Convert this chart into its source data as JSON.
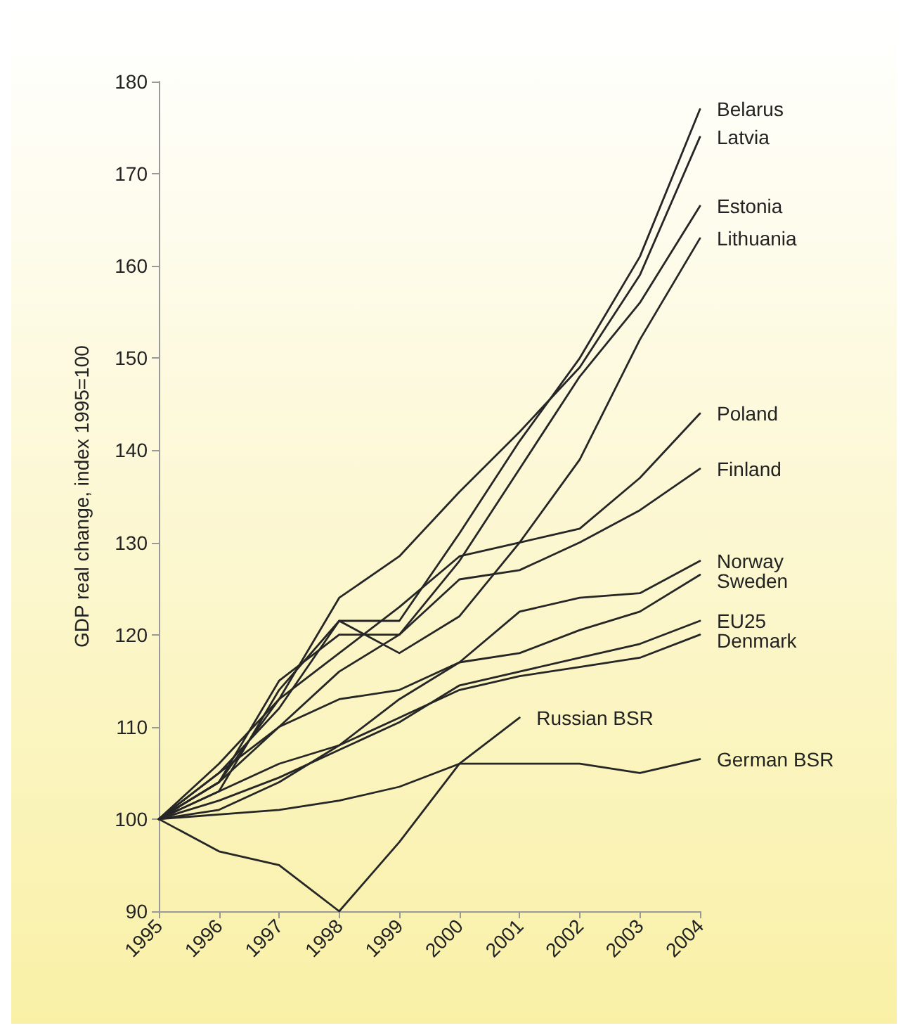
{
  "chart_data": {
    "type": "line",
    "ylabel": "GDP real change, index 1995=100",
    "categories": [
      "1995",
      "1996",
      "1997",
      "1998",
      "1999",
      "2000",
      "2001",
      "2002",
      "2003",
      "2004"
    ],
    "ylim": [
      90,
      180
    ],
    "yticks": [
      90,
      100,
      110,
      120,
      130,
      140,
      150,
      160,
      170,
      180
    ],
    "grid": false,
    "legend": false,
    "marker": "none",
    "line_style": "solid",
    "series": [
      {
        "name": "Belarus",
        "color": "#262626",
        "values": [
          100,
          103,
          114,
          121.5,
          121.5,
          131,
          141,
          150,
          161,
          177
        ]
      },
      {
        "name": "Latvia",
        "color": "#262626",
        "values": [
          100,
          104,
          113,
          124,
          128.5,
          135.5,
          142,
          149,
          159,
          174
        ]
      },
      {
        "name": "Estonia",
        "color": "#262626",
        "values": [
          100,
          104,
          115,
          120,
          120,
          128,
          138,
          148,
          156,
          166.5
        ]
      },
      {
        "name": "Lithuania",
        "color": "#262626",
        "values": [
          100,
          105,
          112,
          121.5,
          118,
          122,
          130,
          139,
          152,
          163
        ]
      },
      {
        "name": "Poland",
        "color": "#262626",
        "values": [
          100,
          106,
          113,
          118,
          123,
          128.5,
          130,
          131.5,
          137,
          144
        ]
      },
      {
        "name": "Finland",
        "color": "#262626",
        "values": [
          100,
          104,
          110,
          116,
          120,
          126,
          127,
          130,
          133.5,
          138
        ]
      },
      {
        "name": "Norway",
        "color": "#262626",
        "values": [
          100,
          105,
          110,
          113,
          114,
          117,
          122.5,
          124,
          124.5,
          128
        ]
      },
      {
        "name": "Sweden",
        "color": "#262626",
        "values": [
          100,
          101,
          104,
          108,
          113,
          117,
          118,
          120.5,
          122.5,
          126.5
        ]
      },
      {
        "name": "EU25",
        "color": "#262626",
        "values": [
          100,
          102,
          104.5,
          107.5,
          110.5,
          114.5,
          116,
          117.5,
          119,
          121.5
        ]
      },
      {
        "name": "Denmark",
        "color": "#262626",
        "values": [
          100,
          103,
          106,
          108,
          111,
          114,
          115.5,
          116.5,
          117.5,
          120
        ]
      },
      {
        "name": "German BSR",
        "color": "#262626",
        "values": [
          100,
          100.5,
          101,
          102,
          103.5,
          106,
          106,
          106,
          105,
          106.5
        ]
      },
      {
        "name": "Russian BSR",
        "color": "#262626",
        "values": [
          100,
          96.5,
          95,
          90,
          97.5,
          106,
          111,
          null,
          null,
          null
        ]
      }
    ]
  }
}
